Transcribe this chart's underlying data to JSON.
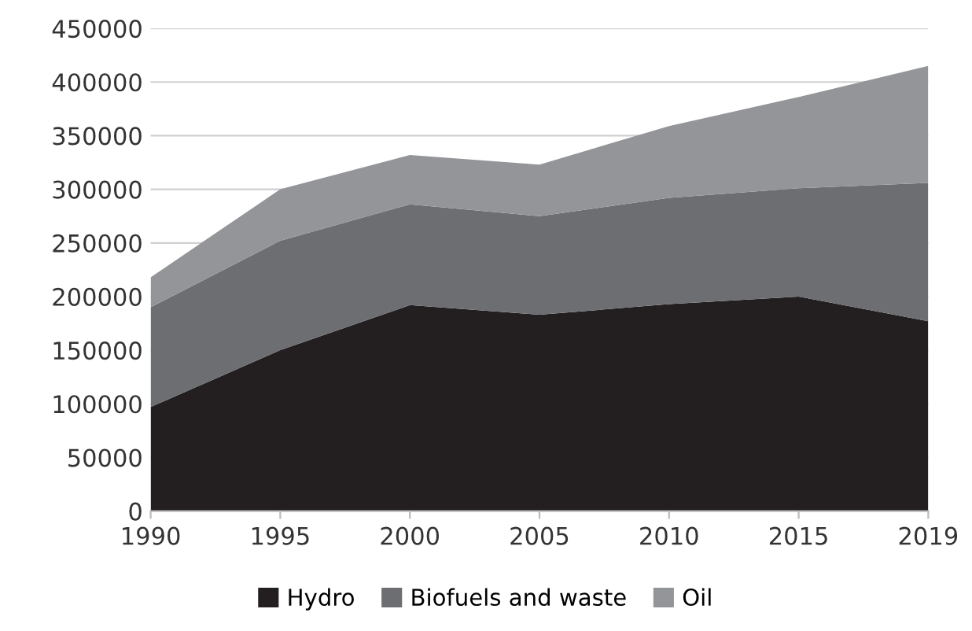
{
  "chart_data": {
    "type": "area",
    "stacked": true,
    "categories": [
      "1990",
      "1995",
      "2000",
      "2005",
      "2010",
      "2015",
      "2019"
    ],
    "series": [
      {
        "name": "Hydro",
        "color": "#231f20",
        "values": [
          97000,
          150000,
          192000,
          183000,
          193000,
          200000,
          177000
        ]
      },
      {
        "name": "Biofuels and waste",
        "color": "#6d6e71",
        "values": [
          93000,
          102000,
          94000,
          92000,
          99000,
          101000,
          129000
        ]
      },
      {
        "name": "Oil",
        "color": "#939598",
        "values": [
          28000,
          48000,
          46000,
          48000,
          67000,
          85000,
          109000
        ]
      }
    ],
    "ylim": [
      0,
      450000
    ],
    "yticks": [
      0,
      50000,
      100000,
      150000,
      200000,
      250000,
      300000,
      350000,
      400000,
      450000
    ],
    "grid": "y",
    "legend": "bottom"
  }
}
